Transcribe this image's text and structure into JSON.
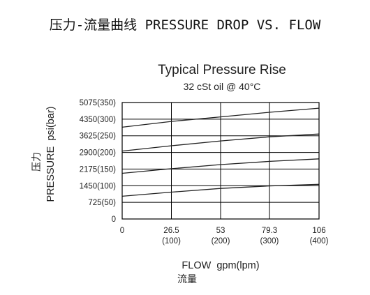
{
  "header": {
    "title": "压力-流量曲线 PRESSURE DROP VS. FLOW"
  },
  "chart_data": {
    "type": "line",
    "title": "Typical Pressure Rise",
    "subtitle": "32 cSt oil @ 40°C",
    "ylabel_cn": "压力",
    "ylabel": "PRESSURE  psi(bar)",
    "xlabel": "FLOW  gpm(lpm)",
    "xlabel_cn": "流量",
    "xlim": [
      0,
      106
    ],
    "ylim": [
      0,
      5075
    ],
    "grid": true,
    "x_ticks": [
      {
        "value": 0,
        "label": "0",
        "sublabel": ""
      },
      {
        "value": 26.5,
        "label": "26.5",
        "sublabel": "(100)"
      },
      {
        "value": 53,
        "label": "53",
        "sublabel": "(200)"
      },
      {
        "value": 79.3,
        "label": "79.3",
        "sublabel": "(300)"
      },
      {
        "value": 106,
        "label": "106",
        "sublabel": "(400)"
      }
    ],
    "y_ticks": [
      {
        "value": 0,
        "label": "0"
      },
      {
        "value": 725,
        "label": "725(50)"
      },
      {
        "value": 1450,
        "label": "1450(100)"
      },
      {
        "value": 2175,
        "label": "2175(150)"
      },
      {
        "value": 2900,
        "label": "2900(200)"
      },
      {
        "value": 3625,
        "label": "3625(250)"
      },
      {
        "value": 4350,
        "label": "4350(300)"
      },
      {
        "value": 5075,
        "label": "5075(350)"
      }
    ],
    "series": [
      {
        "x": [
          0,
          26.5,
          53,
          79.3,
          106
        ],
        "values": [
          4000,
          4250,
          4450,
          4650,
          4830
        ]
      },
      {
        "x": [
          0,
          26.5,
          53,
          79.3,
          106
        ],
        "values": [
          2960,
          3190,
          3400,
          3580,
          3700
        ]
      },
      {
        "x": [
          0,
          26.5,
          53,
          79.3,
          106
        ],
        "values": [
          1990,
          2190,
          2370,
          2510,
          2620
        ]
      },
      {
        "x": [
          0,
          26.5,
          53,
          79.3,
          106
        ],
        "values": [
          990,
          1170,
          1330,
          1440,
          1510
        ]
      }
    ]
  }
}
